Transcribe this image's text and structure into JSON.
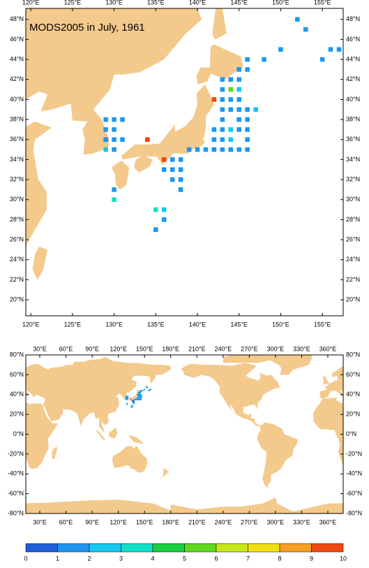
{
  "title": "MODS2005 in July, 1961",
  "regional_map": {
    "xlim": [
      119.4,
      157.5
    ],
    "ylim": [
      18.4,
      49.1
    ],
    "xticks": [
      {
        "value": 120,
        "label": "120°E"
      },
      {
        "value": 125,
        "label": "125°E"
      },
      {
        "value": 130,
        "label": "130°E"
      },
      {
        "value": 135,
        "label": "135°E"
      },
      {
        "value": 140,
        "label": "140°E"
      },
      {
        "value": 145,
        "label": "145°E"
      },
      {
        "value": 150,
        "label": "150°E"
      },
      {
        "value": 155,
        "label": "155°E"
      }
    ],
    "yticks": [
      {
        "value": 20,
        "label": "20°N"
      },
      {
        "value": 22,
        "label": "22°N"
      },
      {
        "value": 24,
        "label": "24°N"
      },
      {
        "value": 26,
        "label": "26°N"
      },
      {
        "value": 28,
        "label": "28°N"
      },
      {
        "value": 30,
        "label": "30°N"
      },
      {
        "value": 32,
        "label": "32°N"
      },
      {
        "value": 34,
        "label": "34°N"
      },
      {
        "value": 36,
        "label": "36°N"
      },
      {
        "value": 38,
        "label": "38°N"
      },
      {
        "value": 40,
        "label": "40°N"
      },
      {
        "value": 42,
        "label": "42°N"
      },
      {
        "value": 44,
        "label": "44°N"
      },
      {
        "value": 46,
        "label": "46°N"
      },
      {
        "value": 48,
        "label": "48°N"
      }
    ]
  },
  "global_map": {
    "xlim": [
      14,
      377.6
    ],
    "ylim": [
      -80,
      80
    ],
    "xticks": [
      {
        "value": 30,
        "label": "30°E"
      },
      {
        "value": 60,
        "label": "60°E"
      },
      {
        "value": 90,
        "label": "90°E"
      },
      {
        "value": 120,
        "label": "120°E"
      },
      {
        "value": 150,
        "label": "150°E"
      },
      {
        "value": 180,
        "label": "180°E"
      },
      {
        "value": 210,
        "label": "210°E"
      },
      {
        "value": 240,
        "label": "240°E"
      },
      {
        "value": 270,
        "label": "270°E"
      },
      {
        "value": 300,
        "label": "300°E"
      },
      {
        "value": 330,
        "label": "330°E"
      },
      {
        "value": 360,
        "label": "360°E"
      }
    ],
    "yticks": [
      {
        "value": -80,
        "label": "-80°N"
      },
      {
        "value": -60,
        "label": "-60°N"
      },
      {
        "value": -40,
        "label": "-40°N"
      },
      {
        "value": -20,
        "label": "-20°N"
      },
      {
        "value": 0,
        "label": "0°N"
      },
      {
        "value": 20,
        "label": "20°N"
      },
      {
        "value": 40,
        "label": "40°N"
      },
      {
        "value": 60,
        "label": "60°N"
      },
      {
        "value": 80,
        "label": "80°N"
      }
    ]
  },
  "observations": {
    "lon": [
      129,
      130,
      131,
      129,
      130,
      129,
      130,
      131,
      129,
      130,
      130,
      130,
      134,
      137,
      138,
      136,
      137,
      138,
      137,
      138,
      138,
      136,
      135,
      136,
      135,
      136,
      139,
      140,
      141,
      142,
      143,
      144,
      145,
      146,
      142,
      143,
      144,
      146,
      142,
      143,
      144,
      145,
      146,
      143,
      145,
      146,
      143,
      144,
      145,
      146,
      147,
      142,
      143,
      144,
      145,
      143,
      144,
      145,
      143,
      144,
      145,
      145,
      146,
      146,
      148,
      150,
      152,
      155,
      156,
      157,
      153
    ],
    "lat": [
      38,
      38,
      38,
      37,
      37,
      36,
      36,
      36,
      35,
      35,
      31,
      30,
      36,
      34,
      34,
      33,
      33,
      33,
      32,
      32,
      31,
      29,
      29,
      28,
      27,
      34,
      35,
      35,
      35,
      35,
      35,
      35,
      35,
      35,
      36,
      36,
      36,
      36,
      37,
      37,
      37,
      37,
      37,
      38,
      38,
      38,
      39,
      39,
      39,
      39,
      39,
      40,
      40,
      40,
      40,
      41,
      41,
      41,
      42,
      42,
      42,
      43,
      43,
      44,
      44,
      45,
      48,
      44,
      45,
      45,
      47
    ],
    "values": [
      1.5,
      1.5,
      1.5,
      1.5,
      1.5,
      1.5,
      1.5,
      1.5,
      2.5,
      1.5,
      1.5,
      3.5,
      9.5,
      1.5,
      1.5,
      1.5,
      1.5,
      1.5,
      1.5,
      1.5,
      1.5,
      2.5,
      3.5,
      1.5,
      1.5,
      9.5,
      1.5,
      1.5,
      1.5,
      1.5,
      1.5,
      1.5,
      1.5,
      1.5,
      1.5,
      1.5,
      2.5,
      1.5,
      1.5,
      1.5,
      2.5,
      1.5,
      1.5,
      1.5,
      1.5,
      1.5,
      1.5,
      1.5,
      1.5,
      1.5,
      2.5,
      9.5,
      1.5,
      1.5,
      1.5,
      1.5,
      5.5,
      2.5,
      1.5,
      1.5,
      1.5,
      1.5,
      1.5,
      1.5,
      1.5,
      1.5,
      1.5,
      1.5,
      1.5,
      1.5,
      1.5
    ]
  },
  "colorbar": {
    "ticks": [
      0,
      1,
      2,
      3,
      4,
      5,
      6,
      7,
      8,
      9,
      10
    ],
    "colors": [
      "#1f5fd8",
      "#1e96f0",
      "#15c8f0",
      "#10e0c8",
      "#18d040",
      "#60d820",
      "#c8e818",
      "#f0e010",
      "#f5a020",
      "#f04810"
    ]
  }
}
